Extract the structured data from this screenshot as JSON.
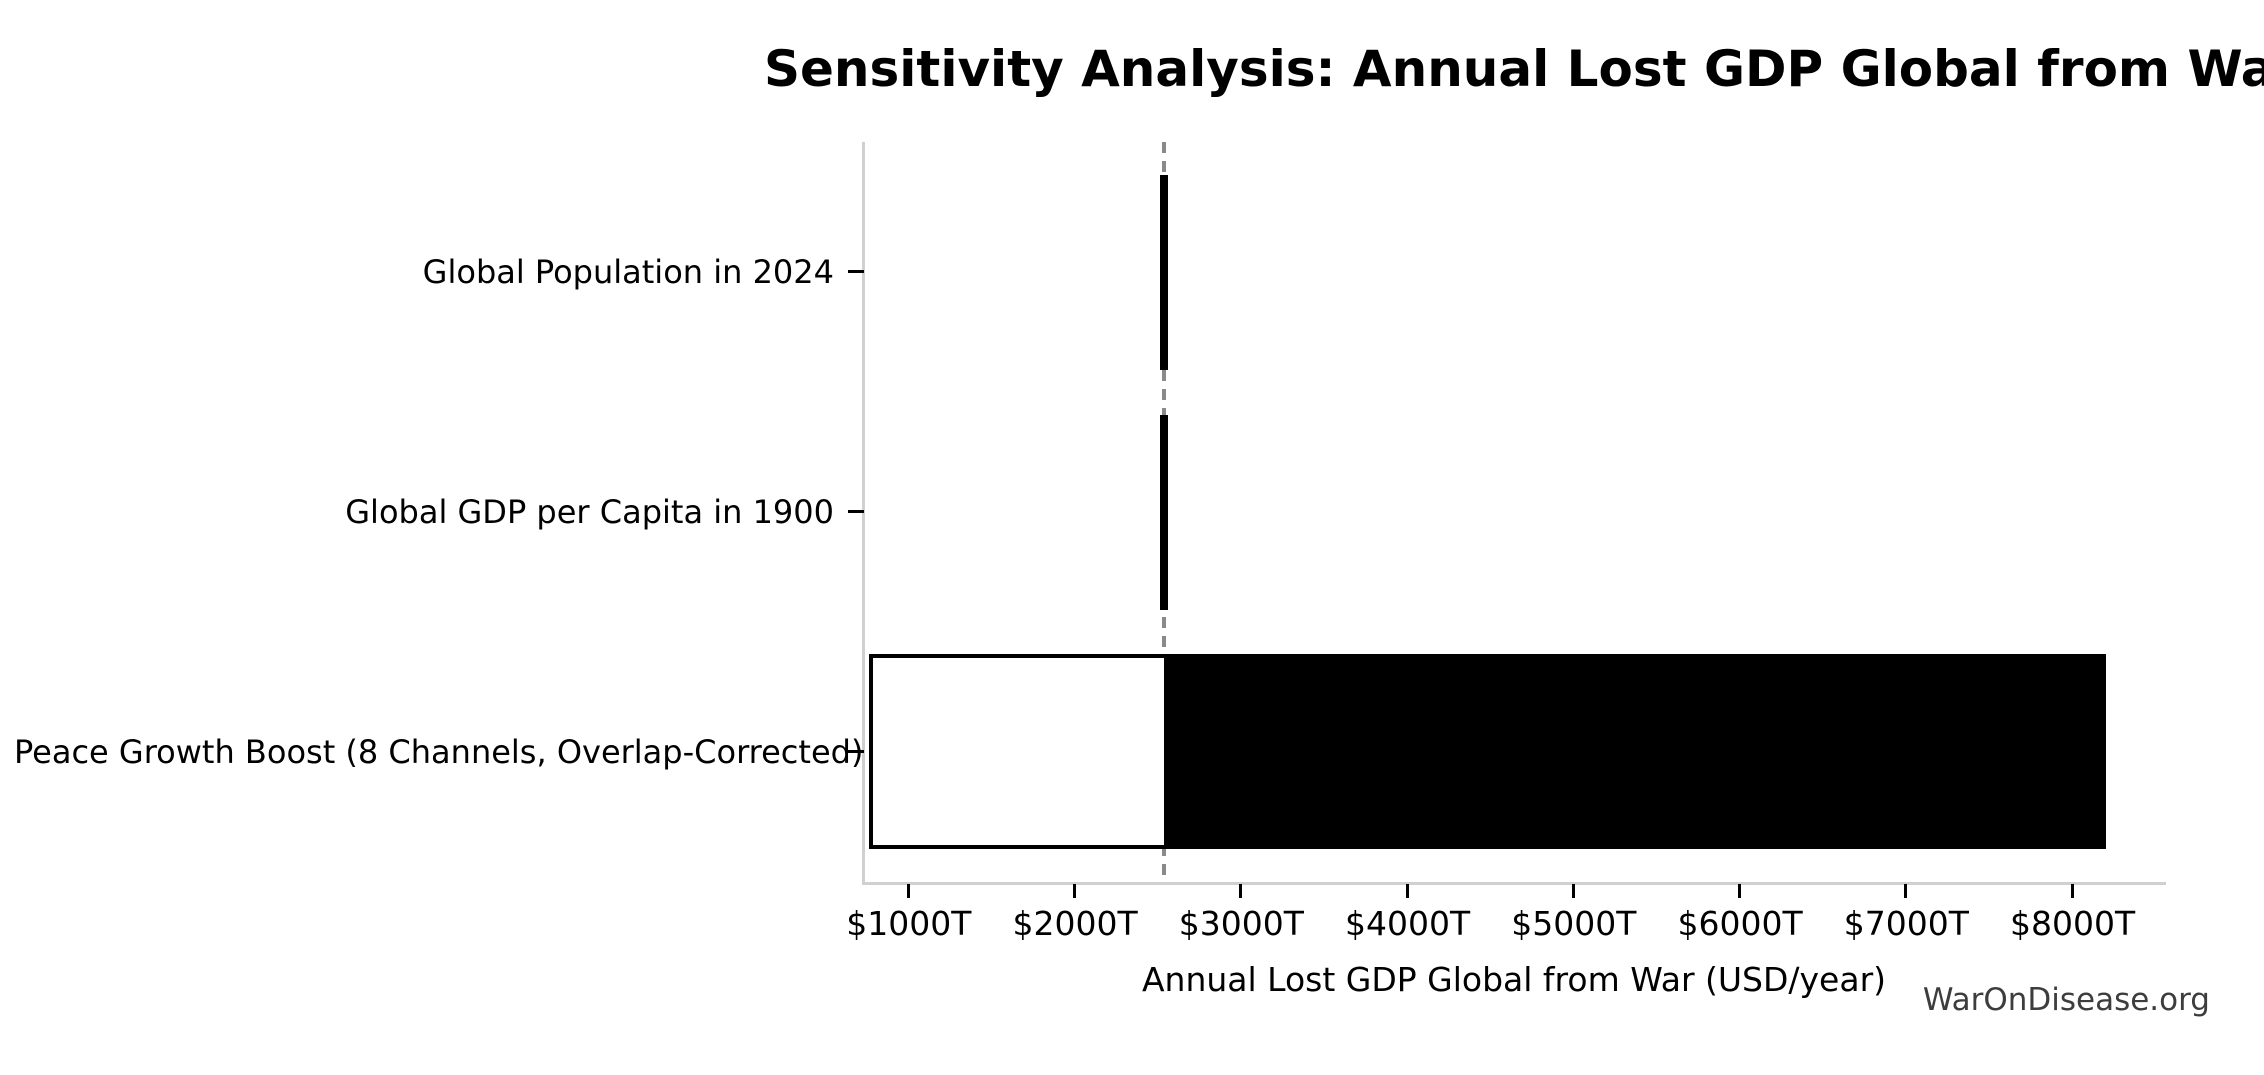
{
  "watermark": "WarOnDisease.org",
  "chart_data": {
    "type": "bar",
    "orientation": "horizontal",
    "subtype": "tornado-sensitivity",
    "title": "Sensitivity Analysis: Annual Lost GDP Global from War",
    "xlabel": "Annual Lost GDP Global from War (USD/year)",
    "ylabel": "",
    "grid": false,
    "legend": false,
    "xlim": [
      730,
      8550
    ],
    "x_unit": "trillion USD per year",
    "x_tick_values": [
      1000,
      2000,
      3000,
      4000,
      5000,
      6000,
      7000,
      8000
    ],
    "x_tick_labels": [
      "$1000T",
      "$2000T",
      "$3000T",
      "$4000T",
      "$5000T",
      "$6000T",
      "$7000T",
      "$8000T"
    ],
    "baseline_value": 2535,
    "rows": [
      {
        "label": "Global Population in 2024",
        "low": 2510,
        "high": 2560
      },
      {
        "label": "Global GDP per Capita in 1900",
        "low": 2510,
        "high": 2560
      },
      {
        "label": "Peace Growth Boost (8 Channels, Overlap-Corrected)",
        "low": 760,
        "high": 8200
      }
    ],
    "colors": {
      "bar_fill_above_base": "#000000",
      "bar_fill_below_base": "#ffffff",
      "bar_edge": "#000000",
      "baseline_dash": "#8a8a8a",
      "spine": "#d0d0d0",
      "tick": "#000000",
      "text": "#000000",
      "watermark": "#3d3d3d",
      "background": "#ffffff"
    }
  }
}
